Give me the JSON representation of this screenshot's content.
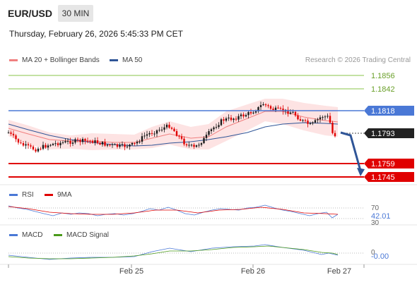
{
  "header": {
    "symbol": "EUR/USD",
    "interval": "30 MIN",
    "datetime": "Thursday, February 26, 2026 5:45:33 PM CET"
  },
  "legend_main": [
    {
      "label": "MA 20 + Bollinger Bands",
      "color": "#f08080"
    },
    {
      "label": "MA 50",
      "color": "#2f5597"
    }
  ],
  "credit": "Research © 2026 Trading Central",
  "levels": {
    "resistance_2": "1.1856",
    "resistance_1": "1.1842",
    "pivot": "1.1818",
    "current": "1.1793",
    "support_1": "1.1759",
    "support_2": "1.1745"
  },
  "rsi_panel": {
    "legend": [
      {
        "label": "RSI",
        "color": "#4a78d6"
      },
      {
        "label": "9MA",
        "color": "#e00000"
      }
    ],
    "level_70": "70",
    "value": "42.01",
    "level_30": "30"
  },
  "macd_panel": {
    "legend": [
      {
        "label": "MACD",
        "color": "#4a78d6"
      },
      {
        "label": "MACD Signal",
        "color": "#4a9a1a"
      }
    ],
    "level_0": "0",
    "value": "-0.00"
  },
  "x_axis": [
    "Feb 25",
    "Feb 26",
    "Feb 27"
  ],
  "colors": {
    "up": "#1a1a1a",
    "down": "#e00000",
    "bollinger_fill": "#fde3e3",
    "pivot": "#4a78d6",
    "resistance": "#8ac44a",
    "support": "#e00000",
    "current_tag": "#222222",
    "arrow": "#2f5597"
  }
}
